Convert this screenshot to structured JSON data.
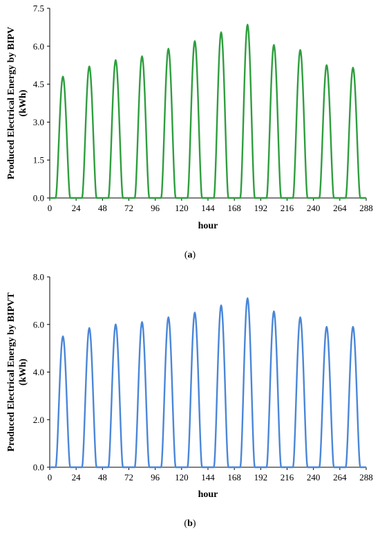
{
  "chart_data": [
    {
      "type": "line",
      "panel_label": "(a)",
      "panel_letter": "a",
      "xlabel": "hour",
      "ylabel_line1": "Produced Electrical Energy by BIPV",
      "ylabel_line2": "(kWh)",
      "xlim": [
        0,
        288
      ],
      "ylim": [
        0,
        7.5
      ],
      "x_ticks": [
        "0",
        "24",
        "48",
        "72",
        "96",
        "120",
        "144",
        "168",
        "192",
        "216",
        "240",
        "264",
        "288"
      ],
      "y_ticks": [
        "0.0",
        "1.5",
        "3.0",
        "4.5",
        "6.0",
        "7.5"
      ],
      "series_color": "#2e9e3e",
      "day_peaks": [
        {
          "hour": 12,
          "value": 4.8
        },
        {
          "hour": 36,
          "value": 5.2
        },
        {
          "hour": 60,
          "value": 5.45
        },
        {
          "hour": 84,
          "value": 5.6
        },
        {
          "hour": 108,
          "value": 5.9
        },
        {
          "hour": 132,
          "value": 6.2
        },
        {
          "hour": 156,
          "value": 6.55
        },
        {
          "hour": 180,
          "value": 6.85
        },
        {
          "hour": 204,
          "value": 6.05
        },
        {
          "hour": 228,
          "value": 5.85
        },
        {
          "hour": 252,
          "value": 5.25
        },
        {
          "hour": 276,
          "value": 5.15
        }
      ],
      "grid": false
    },
    {
      "type": "line",
      "panel_label": "(b)",
      "panel_letter": "b",
      "xlabel": "hour",
      "ylabel_line1": "Produced Electrical Energy by BIPVT",
      "ylabel_line2": "(kWh)",
      "xlim": [
        0,
        288
      ],
      "ylim": [
        0,
        8.0
      ],
      "x_ticks": [
        "0",
        "24",
        "48",
        "72",
        "96",
        "120",
        "144",
        "168",
        "192",
        "216",
        "240",
        "264",
        "288"
      ],
      "y_ticks": [
        "0.0",
        "2.0",
        "4.0",
        "6.0",
        "8.0"
      ],
      "series_color": "#4a86d8",
      "day_peaks": [
        {
          "hour": 12,
          "value": 5.5
        },
        {
          "hour": 36,
          "value": 5.85
        },
        {
          "hour": 60,
          "value": 6.0
        },
        {
          "hour": 84,
          "value": 6.1
        },
        {
          "hour": 108,
          "value": 6.3
        },
        {
          "hour": 132,
          "value": 6.5
        },
        {
          "hour": 156,
          "value": 6.8
        },
        {
          "hour": 180,
          "value": 7.1
        },
        {
          "hour": 204,
          "value": 6.55
        },
        {
          "hour": 228,
          "value": 6.3
        },
        {
          "hour": 252,
          "value": 5.9
        },
        {
          "hour": 276,
          "value": 5.9
        }
      ],
      "grid": false
    }
  ]
}
